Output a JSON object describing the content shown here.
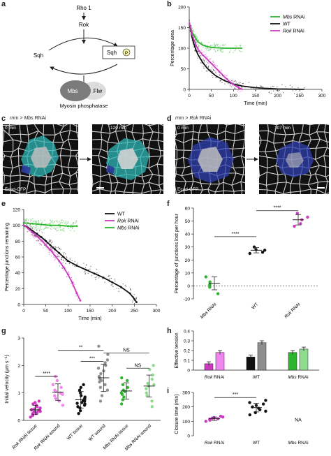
{
  "panel_labels": {
    "a": "a",
    "b": "b",
    "c": "c",
    "d": "d",
    "e": "e",
    "f": "f",
    "g": "g",
    "h": "h",
    "i": "i"
  },
  "pathway": {
    "rho": "Rho 1",
    "rok": "Rok",
    "sqh_left": "Sqh",
    "sqh_right": "Sqh",
    "p": "P",
    "mbs": "Mbs",
    "flw": "Flw",
    "phosphatase": "Myosin phosphatase"
  },
  "micro_c": {
    "header_pre": "rn > ",
    "header_italic": "Mbs",
    "header_post": " RNAi",
    "t0": "0 min",
    "t1": "120 min",
    "marker": "Ecad-GFP"
  },
  "micro_d": {
    "header_pre": "rn > ",
    "header_italic": "Rok",
    "header_post": " RNAi",
    "t0": "0 min",
    "t1": "107 min",
    "marker": "Ecad-GFP"
  },
  "colors": {
    "wt": "#111111",
    "rok": "#cc3ac0",
    "mbs": "#2db52d",
    "rok_light": "#f085f0",
    "wt_light": "#8f8f8f",
    "mbs_light": "#8fdc8f"
  },
  "chart_data": [
    {
      "id": "b",
      "type": "line",
      "xlabel": "Time (min)",
      "ylabel": "Percentage area",
      "xlim": [
        0,
        300
      ],
      "ylim": [
        0,
        200
      ],
      "xticks": [
        0,
        50,
        100,
        150,
        200,
        250,
        300
      ],
      "yticks": [
        0,
        50,
        100,
        150,
        200
      ],
      "legend_position": "top-right",
      "series": [
        {
          "name": "Mbs",
          "name_suffix": " RNAi",
          "italic": true,
          "color_key": "mbs",
          "x": [
            0,
            3,
            6,
            10,
            15,
            20,
            30,
            40,
            50,
            60,
            80,
            100,
            120
          ],
          "y": [
            160,
            150,
            140,
            132,
            123,
            115,
            108,
            104,
            102,
            101,
            100,
            100,
            100
          ]
        },
        {
          "name": "WT",
          "name_suffix": "",
          "italic": false,
          "color_key": "wt",
          "x": [
            0,
            3,
            6,
            10,
            15,
            20,
            30,
            40,
            50,
            60,
            80,
            100,
            120,
            150,
            180,
            200,
            230,
            260
          ],
          "y": [
            160,
            148,
            128,
            112,
            96,
            84,
            66,
            52,
            42,
            33,
            21,
            13,
            8,
            4,
            2,
            1,
            0.5,
            0
          ]
        },
        {
          "name": "Rok",
          "name_suffix": " RNAi",
          "italic": true,
          "color_key": "rok",
          "x": [
            0,
            3,
            6,
            10,
            15,
            20,
            30,
            40,
            50,
            60,
            70,
            80,
            90,
            100,
            110,
            120
          ],
          "y": [
            162,
            150,
            135,
            122,
            108,
            97,
            84,
            74,
            63,
            52,
            41,
            30,
            20,
            12,
            5,
            0
          ]
        }
      ]
    },
    {
      "id": "e",
      "type": "line",
      "xlabel": "Time (min)",
      "ylabel": "Percentage junctions remaining",
      "xlim": [
        0,
        300
      ],
      "ylim": [
        0,
        120
      ],
      "xticks": [
        0,
        50,
        100,
        150,
        200,
        250,
        300
      ],
      "yticks": [
        0,
        20,
        40,
        60,
        80,
        100,
        120
      ],
      "legend_position": "top-right",
      "series": [
        {
          "name": "WT",
          "name_suffix": "",
          "italic": false,
          "color_key": "wt",
          "x": [
            0,
            10,
            20,
            30,
            40,
            50,
            60,
            70,
            80,
            90,
            100,
            120,
            140,
            160,
            180,
            200,
            220,
            240,
            250,
            255
          ],
          "y": [
            100,
            97,
            93,
            89,
            85,
            80,
            75,
            70,
            65,
            60,
            55,
            49,
            44,
            39,
            34,
            28,
            22,
            14,
            7,
            3
          ]
        },
        {
          "name": "Rok",
          "name_suffix": " RNAi",
          "italic": true,
          "color_key": "rok",
          "x": [
            0,
            10,
            20,
            30,
            40,
            50,
            60,
            70,
            80,
            90,
            100,
            110,
            120,
            128
          ],
          "y": [
            100,
            96,
            91,
            86,
            81,
            75,
            69,
            62,
            55,
            47,
            38,
            27,
            14,
            5
          ]
        },
        {
          "name": "Mbs",
          "name_suffix": " RNAi",
          "italic": true,
          "color_key": "mbs",
          "x": [
            0,
            20,
            40,
            60,
            80,
            100,
            120
          ],
          "y": [
            103,
            102,
            101,
            100,
            100,
            99,
            99
          ]
        }
      ]
    },
    {
      "id": "f",
      "type": "scatter",
      "ylabel": "Percentage of junctions lost per hour",
      "ylim": [
        -10,
        60
      ],
      "yticks": [
        -10,
        0,
        10,
        20,
        30,
        40,
        50,
        60
      ],
      "categories": [
        {
          "label": "Mbs",
          "suffix": " RNAi",
          "italic": true,
          "color_key": "mbs",
          "points": [
            7,
            3,
            1,
            -1,
            -6
          ],
          "mean": 2,
          "sd": 5
        },
        {
          "label": "WT",
          "suffix": "",
          "italic": false,
          "color_key": "wt",
          "points": [
            30,
            28,
            27.5,
            26,
            25
          ],
          "mean": 27.5,
          "sd": 2
        },
        {
          "label": "Rok",
          "suffix": " RNAi",
          "italic": true,
          "color_key": "rok",
          "points": [
            56,
            53,
            51,
            48,
            46
          ],
          "mean": 51,
          "sd": 4
        }
      ],
      "significance": [
        {
          "from": 0,
          "to": 1,
          "label": "****",
          "y": 38
        },
        {
          "from": 1,
          "to": 2,
          "label": "****",
          "y": 58
        }
      ]
    },
    {
      "id": "g",
      "type": "scatter",
      "ylabel": "Initial velocity (µm s⁻¹)",
      "ylim": [
        0,
        3
      ],
      "yticks": [
        0,
        1,
        2,
        3
      ],
      "categories": [
        {
          "label": "Rok",
          "suffix": " RNAi tissue",
          "italic": true,
          "color_key": "rok",
          "points": [
            0.12,
            0.18,
            0.22,
            0.25,
            0.28,
            0.3,
            0.32,
            0.35,
            0.37,
            0.4,
            0.42,
            0.45,
            0.5,
            0.55,
            0.6,
            0.65,
            0.7,
            0.38,
            0.33,
            0.27
          ],
          "mean": 0.38,
          "sd": 0.17
        },
        {
          "label": "Rok",
          "suffix": " RNAi wound",
          "italic": true,
          "color_key": "rok_light",
          "points": [
            0.55,
            0.7,
            0.8,
            0.9,
            1.0,
            1.05,
            1.1,
            1.2,
            1.3,
            1.45,
            1.6,
            0.95
          ],
          "mean": 1.03,
          "sd": 0.3
        },
        {
          "label": "WT",
          "suffix": " tissue",
          "italic": false,
          "color_key": "wt",
          "points": [
            0.25,
            0.35,
            0.45,
            0.5,
            0.55,
            0.6,
            0.65,
            0.7,
            0.75,
            0.8,
            0.85,
            0.9,
            1.0,
            1.1,
            1.2,
            1.3,
            0.72,
            0.62
          ],
          "mean": 0.75,
          "sd": 0.3
        },
        {
          "label": "WT",
          "suffix": " wound",
          "italic": false,
          "color_key": "wt_light",
          "points": [
            0.7,
            0.9,
            1.1,
            1.2,
            1.3,
            1.4,
            1.5,
            1.6,
            1.7,
            1.8,
            1.9,
            2.0,
            2.1,
            2.2,
            2.4,
            2.7,
            1.55,
            1.45
          ],
          "mean": 1.55,
          "sd": 0.5
        },
        {
          "label": "Mbs",
          "suffix": " RNAi tissue",
          "italic": true,
          "color_key": "mbs",
          "points": [
            0.6,
            0.75,
            0.85,
            0.95,
            1.05,
            1.1,
            1.2,
            1.3,
            1.45,
            1.55,
            1.0
          ],
          "mean": 1.07,
          "sd": 0.3
        },
        {
          "label": "Mbs",
          "suffix": " RNAi wound",
          "italic": true,
          "color_key": "mbs_light",
          "points": [
            0.5,
            0.7,
            0.9,
            1.0,
            1.15,
            1.25,
            1.35,
            1.5,
            1.65,
            1.85,
            2.0,
            1.3
          ],
          "mean": 1.25,
          "sd": 0.4
        }
      ],
      "significance": [
        {
          "from": 0,
          "to": 1,
          "label": "****",
          "y": 1.6
        },
        {
          "from": 2,
          "to": 3,
          "label": "***",
          "y": 2.15
        },
        {
          "from": 1,
          "to": 3,
          "label": "**",
          "y": 2.55
        },
        {
          "from": 4,
          "to": 5,
          "label": "NS",
          "y": 1.9
        },
        {
          "from": 3,
          "to": 5,
          "label": "NS",
          "y": 2.45
        }
      ]
    },
    {
      "id": "h",
      "type": "bar",
      "ylabel": "Effective tension",
      "ylim": [
        0,
        0.4
      ],
      "yticks": [
        0,
        0.1,
        0.2,
        0.3,
        0.4
      ],
      "groups": [
        {
          "label": "Rok",
          "suffix": " RNAi",
          "italic": true,
          "bars": [
            {
              "value": 0.065,
              "err": 0.02,
              "color_key": "rok"
            },
            {
              "value": 0.18,
              "err": 0.02,
              "color_key": "rok_light"
            }
          ]
        },
        {
          "label": "WT",
          "suffix": "",
          "italic": false,
          "bars": [
            {
              "value": 0.135,
              "err": 0.02,
              "color_key": "wt"
            },
            {
              "value": 0.28,
              "err": 0.02,
              "color_key": "wt_light"
            }
          ]
        },
        {
          "label": "Mbs",
          "suffix": " RNAi",
          "italic": true,
          "bars": [
            {
              "value": 0.18,
              "err": 0.02,
              "color_key": "mbs"
            },
            {
              "value": 0.215,
              "err": 0.02,
              "color_key": "mbs_light"
            }
          ]
        }
      ]
    },
    {
      "id": "i",
      "type": "scatter",
      "ylabel": "Closure time (min)",
      "ylim": [
        0,
        300
      ],
      "yticks": [
        0,
        100,
        200,
        300
      ],
      "categories": [
        {
          "label": "Rok",
          "suffix": " RNAi",
          "italic": true,
          "color_key": "rok",
          "points": [
            100,
            108,
            112,
            115,
            118,
            122,
            126,
            130,
            135
          ],
          "mean": 118,
          "sd": 12,
          "na": ""
        },
        {
          "label": "WT",
          "suffix": "",
          "italic": false,
          "color_key": "wt",
          "points": [
            145,
            160,
            170,
            180,
            190,
            200,
            210,
            220,
            230,
            245
          ],
          "mean": 195,
          "sd": 30,
          "na": ""
        },
        {
          "label": "Mbs",
          "suffix": " RNAi",
          "italic": true,
          "color_key": "mbs",
          "points": [],
          "mean": null,
          "sd": null,
          "na": "NA"
        }
      ],
      "significance": [
        {
          "from": 0,
          "to": 1,
          "label": "***",
          "y": 265
        }
      ]
    }
  ]
}
